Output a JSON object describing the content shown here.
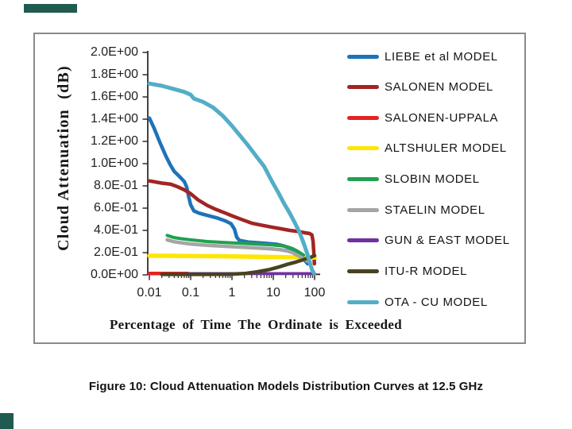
{
  "page": {
    "caption": "Figure 10: Cloud Attenuation Models Distribution Curves at 12.5 GHz"
  },
  "decor": {
    "accent_color": "#1F5B50"
  },
  "chart_data": {
    "type": "line",
    "title": "",
    "xlabel": "Percentage of Time The Ordinate is Exceeded",
    "ylabel": "Cloud Attenuation  (dB)",
    "x_scale": "log",
    "x_range": [
      0.01,
      100
    ],
    "y_range": [
      0,
      2
    ],
    "grid": false,
    "legend_position": "right",
    "x_ticks": [
      "0.01",
      "0.1",
      "1",
      "10",
      "100"
    ],
    "x_tick_values": [
      0.01,
      0.1,
      1,
      10,
      100
    ],
    "y_ticks": [
      "2.0E+00",
      "1.8E+00",
      "1.6E+00",
      "1.4E+00",
      "1.2E+00",
      "1.0E+00",
      "8.0E-01",
      "6.0E-01",
      "4.0E-01",
      "2.0E-01",
      "0.0E+00"
    ],
    "axis_color": "#2e2e2e",
    "series": [
      {
        "name": "LIEBE et al MODEL",
        "color": "#1E73B8",
        "width": 4.5,
        "points": [
          [
            0.01,
            1.41
          ],
          [
            0.013,
            1.32
          ],
          [
            0.018,
            1.19
          ],
          [
            0.025,
            1.07
          ],
          [
            0.032,
            0.99
          ],
          [
            0.04,
            0.93
          ],
          [
            0.055,
            0.88
          ],
          [
            0.07,
            0.84
          ],
          [
            0.08,
            0.79
          ],
          [
            0.09,
            0.7
          ],
          [
            0.1,
            0.63
          ],
          [
            0.12,
            0.575
          ],
          [
            0.16,
            0.555
          ],
          [
            0.25,
            0.535
          ],
          [
            0.45,
            0.51
          ],
          [
            0.7,
            0.485
          ],
          [
            0.95,
            0.46
          ],
          [
            1.15,
            0.41
          ],
          [
            1.3,
            0.34
          ],
          [
            1.5,
            0.31
          ],
          [
            2.5,
            0.295
          ],
          [
            6,
            0.285
          ],
          [
            12,
            0.275
          ],
          [
            18,
            0.26
          ],
          [
            28,
            0.235
          ],
          [
            38,
            0.2
          ],
          [
            48,
            0.165
          ],
          [
            58,
            0.13
          ],
          [
            68,
            0.1
          ]
        ]
      },
      {
        "name": "SALONEN MODEL",
        "color": "#A32424",
        "width": 4.5,
        "points": [
          [
            0.01,
            0.845
          ],
          [
            0.02,
            0.825
          ],
          [
            0.033,
            0.815
          ],
          [
            0.05,
            0.79
          ],
          [
            0.07,
            0.765
          ],
          [
            0.1,
            0.73
          ],
          [
            0.15,
            0.675
          ],
          [
            0.25,
            0.625
          ],
          [
            0.4,
            0.59
          ],
          [
            0.7,
            0.555
          ],
          [
            1.1,
            0.525
          ],
          [
            1.8,
            0.495
          ],
          [
            3,
            0.465
          ],
          [
            5.5,
            0.445
          ],
          [
            9,
            0.43
          ],
          [
            15,
            0.415
          ],
          [
            25,
            0.4
          ],
          [
            40,
            0.39
          ],
          [
            60,
            0.378
          ],
          [
            75,
            0.372
          ],
          [
            86,
            0.36
          ],
          [
            92,
            0.3
          ],
          [
            96,
            0.19
          ],
          [
            99,
            0.1
          ]
        ]
      },
      {
        "name": "SALONEN-UPPALA",
        "color": "#E52222",
        "width": 4.5,
        "points": [
          [
            0.01,
            0.013
          ],
          [
            0.03,
            0.013
          ],
          [
            0.085,
            0.013
          ]
        ]
      },
      {
        "name": "ALTSHULER MODEL",
        "color": "#FFE602",
        "width": 5.5,
        "points": [
          [
            0.01,
            0.172
          ],
          [
            0.5,
            0.168
          ],
          [
            5,
            0.162
          ],
          [
            30,
            0.158
          ],
          [
            100,
            0.155
          ]
        ]
      },
      {
        "name": "SLOBIN MODEL",
        "color": "#1FA14E",
        "width": 4,
        "points": [
          [
            0.027,
            0.355
          ],
          [
            0.04,
            0.335
          ],
          [
            0.06,
            0.325
          ],
          [
            0.1,
            0.315
          ],
          [
            0.25,
            0.3
          ],
          [
            0.6,
            0.292
          ],
          [
            1.5,
            0.285
          ],
          [
            4,
            0.277
          ],
          [
            9,
            0.27
          ],
          [
            15,
            0.263
          ],
          [
            22,
            0.252
          ],
          [
            30,
            0.235
          ],
          [
            38,
            0.215
          ],
          [
            46,
            0.195
          ],
          [
            54,
            0.178
          ]
        ]
      },
      {
        "name": "STAELIN MODEL",
        "color": "#A5A5A5",
        "width": 4.5,
        "points": [
          [
            0.027,
            0.315
          ],
          [
            0.04,
            0.298
          ],
          [
            0.06,
            0.288
          ],
          [
            0.1,
            0.278
          ],
          [
            0.25,
            0.266
          ],
          [
            0.6,
            0.258
          ],
          [
            1.5,
            0.25
          ],
          [
            4,
            0.242
          ],
          [
            9,
            0.234
          ],
          [
            15,
            0.226
          ],
          [
            22,
            0.215
          ],
          [
            30,
            0.198
          ],
          [
            40,
            0.172
          ],
          [
            52,
            0.148
          ],
          [
            66,
            0.125
          ],
          [
            78,
            0.115
          ]
        ]
      },
      {
        "name": "GUN & EAST MODEL",
        "color": "#7030A0",
        "width": 3.5,
        "points": [
          [
            0.08,
            0.012
          ],
          [
            1,
            0.012
          ],
          [
            10,
            0.012
          ],
          [
            100,
            0.012
          ]
        ]
      },
      {
        "name": "ITU-R MODEL",
        "color": "#474221",
        "width": 4.5,
        "points": [
          [
            0.02,
            0.004
          ],
          [
            0.8,
            0.005
          ],
          [
            2,
            0.012
          ],
          [
            4,
            0.027
          ],
          [
            8,
            0.048
          ],
          [
            14,
            0.072
          ],
          [
            22,
            0.095
          ],
          [
            35,
            0.115
          ],
          [
            50,
            0.133
          ],
          [
            65,
            0.148
          ],
          [
            80,
            0.158
          ],
          [
            92,
            0.168
          ],
          [
            100,
            0.173
          ]
        ]
      },
      {
        "name": "OTA - CU MODEL",
        "color": "#54ADC7",
        "width": 5,
        "points": [
          [
            0.01,
            1.72
          ],
          [
            0.02,
            1.7
          ],
          [
            0.04,
            1.67
          ],
          [
            0.07,
            1.645
          ],
          [
            0.1,
            1.62
          ],
          [
            0.12,
            1.585
          ],
          [
            0.2,
            1.555
          ],
          [
            0.35,
            1.505
          ],
          [
            0.6,
            1.43
          ],
          [
            1,
            1.34
          ],
          [
            1.5,
            1.26
          ],
          [
            2.5,
            1.16
          ],
          [
            4,
            1.06
          ],
          [
            6,
            0.975
          ],
          [
            9,
            0.85
          ],
          [
            13,
            0.745
          ],
          [
            18,
            0.645
          ],
          [
            25,
            0.555
          ],
          [
            33,
            0.47
          ],
          [
            43,
            0.385
          ],
          [
            55,
            0.28
          ],
          [
            67,
            0.185
          ],
          [
            78,
            0.1
          ],
          [
            88,
            0.04
          ],
          [
            97,
            0.012
          ]
        ]
      }
    ]
  }
}
